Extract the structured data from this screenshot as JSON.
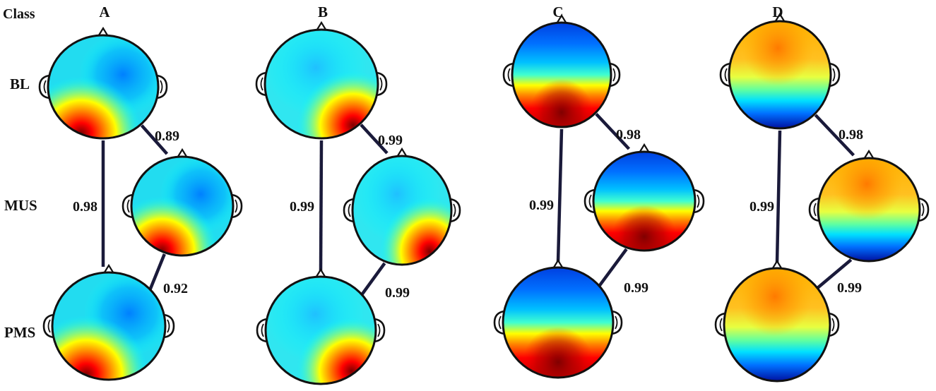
{
  "figure": {
    "class_label": "Class",
    "columns": [
      "A",
      "B",
      "C",
      "D"
    ],
    "rows": [
      "BL",
      "MUS",
      "PMS"
    ],
    "colormap": [
      "#00007f",
      "#0000ff",
      "#0080ff",
      "#00ffff",
      "#80ff80",
      "#ffff00",
      "#ff8000",
      "#ff0000",
      "#800000"
    ],
    "maps": {
      "A": {
        "BL": {
          "pattern": "bottom-left-red"
        },
        "MUS": {
          "pattern": "bottom-left-red"
        },
        "PMS": {
          "pattern": "bottom-left-red"
        }
      },
      "B": {
        "BL": {
          "pattern": "bottom-right-red"
        },
        "MUS": {
          "pattern": "bottom-right-red"
        },
        "PMS": {
          "pattern": "bottom-right-red"
        }
      },
      "C": {
        "BL": {
          "pattern": "blue-top-red-bottom"
        },
        "MUS": {
          "pattern": "blue-top-red-bottom"
        },
        "PMS": {
          "pattern": "blue-top-red-bottom"
        }
      },
      "D": {
        "BL": {
          "pattern": "orange-top-blue-bottom"
        },
        "MUS": {
          "pattern": "orange-top-blue-bottom"
        },
        "PMS": {
          "pattern": "orange-top-blue-bottom"
        }
      }
    },
    "correlations": {
      "A": {
        "BL_MUS": "0.89",
        "BL_PMS": "0.98",
        "MUS_PMS": "0.92"
      },
      "B": {
        "BL_MUS": "0.99",
        "BL_PMS": "0.99",
        "MUS_PMS": "0.99"
      },
      "C": {
        "BL_MUS": "0.98",
        "BL_PMS": "0.99",
        "MUS_PMS": "0.99"
      },
      "D": {
        "BL_MUS": "0.98",
        "BL_PMS": "0.99",
        "MUS_PMS": "0.99"
      }
    }
  }
}
